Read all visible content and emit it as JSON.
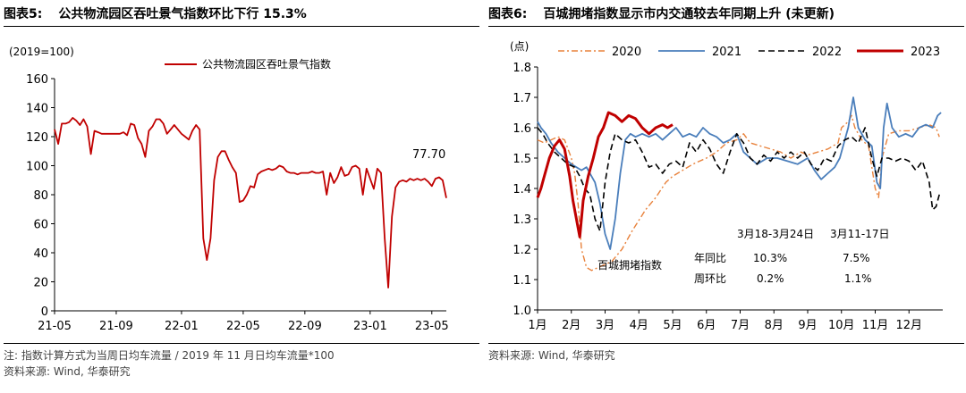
{
  "chart_data": [
    {
      "type": "line",
      "figure_label": "图表5:",
      "title": "公共物流园区吞吐景气指数环比下行 15.3%",
      "unit_note": "(2019=100)",
      "ylim": [
        0,
        160
      ],
      "y_ticks": [
        "0",
        "20",
        "40",
        "60",
        "80",
        "100",
        "120",
        "140",
        "160"
      ],
      "x_ticks": [
        "21-05",
        "21-09",
        "22-01",
        "22-05",
        "22-09",
        "23-01",
        "23-05"
      ],
      "x_tick_pos": [
        0,
        17,
        35,
        52,
        69,
        87,
        104
      ],
      "grid": false,
      "legend": "top",
      "last_value_label": "77.70",
      "color": "#c00000",
      "series": [
        {
          "name": "公共物流园区吞吐景气指数",
          "values": [
            125,
            115,
            129,
            129,
            130,
            133,
            131,
            128,
            132,
            127,
            108,
            124,
            123,
            122,
            122,
            122,
            122,
            122,
            122,
            123,
            121,
            129,
            128,
            119,
            115,
            106,
            124,
            127,
            132,
            132,
            129,
            122,
            125,
            128,
            125,
            122,
            120,
            118,
            124,
            128,
            125,
            50,
            35,
            50,
            90,
            106,
            110,
            110,
            104,
            99,
            95,
            75,
            76,
            80,
            86,
            85,
            94,
            96,
            97,
            98,
            97,
            98,
            100,
            99,
            96,
            95,
            95,
            94,
            95,
            95,
            95,
            96,
            95,
            95,
            96,
            80,
            95,
            88,
            92,
            99,
            93,
            94,
            99,
            100,
            98,
            80,
            98,
            91,
            84,
            98,
            95,
            50,
            16,
            65,
            85,
            89,
            90,
            89,
            91,
            90,
            91,
            90,
            91,
            89,
            86,
            91,
            92,
            90,
            77.7
          ]
        }
      ],
      "footnote_1": "注: 指数计算方式为当周日均车流量 / 2019 年 11 月日均车流量*100",
      "footnote_2": "资料来源: Wind, 华泰研究"
    },
    {
      "type": "line",
      "figure_label": "图表6:",
      "title": "百城拥堵指数显示市内交通较去年同期上升 (未更新)",
      "unit_note": "(点)",
      "ylim": [
        1.0,
        1.8
      ],
      "y_ticks": [
        "1.0",
        "1.1",
        "1.2",
        "1.3",
        "1.4",
        "1.5",
        "1.6",
        "1.7",
        "1.8"
      ],
      "x_ticks": [
        "1月",
        "2月",
        "3月",
        "4月",
        "5月",
        "6月",
        "7月",
        "8月",
        "9月",
        "10月",
        "11月",
        "12月"
      ],
      "legend": "top",
      "curve_annotation": "百城拥堵指数",
      "table": {
        "col_headers": [
          "3月18-3月24日",
          "3月11-17日"
        ],
        "rows": [
          {
            "label": "年同比",
            "values": [
              "10.3%",
              "7.5%"
            ]
          },
          {
            "label": "周环比",
            "values": [
              "0.2%",
              "1.1%"
            ]
          }
        ]
      },
      "series": [
        {
          "name": "2020",
          "color": "#e8823c",
          "dash": "dashdot",
          "x": [
            0,
            0.2,
            0.4,
            0.6,
            0.8,
            1.0,
            1.1,
            1.2,
            1.3,
            1.45,
            1.6,
            1.8,
            2.0,
            2.2,
            2.5,
            2.8,
            3.2,
            3.5,
            3.8,
            4.0,
            4.3,
            4.6,
            5.0,
            5.3,
            5.6,
            5.9,
            6.1,
            6.3,
            6.6,
            6.9,
            7.2,
            7.5,
            7.8,
            8.0,
            8.3,
            8.6,
            8.9,
            9.0,
            9.2,
            9.3,
            9.4,
            9.6,
            9.8,
            10.0,
            10.1,
            10.2,
            10.4,
            10.7,
            11.0,
            11.3,
            11.6,
            11.8,
            11.9
          ],
          "y": [
            1.56,
            1.55,
            1.56,
            1.57,
            1.56,
            1.5,
            1.45,
            1.35,
            1.2,
            1.14,
            1.13,
            1.14,
            1.15,
            1.16,
            1.2,
            1.26,
            1.33,
            1.37,
            1.42,
            1.44,
            1.46,
            1.48,
            1.5,
            1.52,
            1.55,
            1.56,
            1.58,
            1.55,
            1.54,
            1.53,
            1.52,
            1.5,
            1.52,
            1.51,
            1.52,
            1.53,
            1.55,
            1.6,
            1.62,
            1.64,
            1.6,
            1.56,
            1.54,
            1.4,
            1.37,
            1.5,
            1.58,
            1.59,
            1.59,
            1.6,
            1.61,
            1.6,
            1.57
          ]
        },
        {
          "name": "2021",
          "color": "#4a7ebb",
          "dash": "solid",
          "x": [
            0,
            0.1,
            0.25,
            0.4,
            0.6,
            0.8,
            1.0,
            1.15,
            1.3,
            1.45,
            1.6,
            1.7,
            1.85,
            2.0,
            2.15,
            2.3,
            2.45,
            2.6,
            2.75,
            2.9,
            3.1,
            3.3,
            3.5,
            3.7,
            3.9,
            4.1,
            4.3,
            4.5,
            4.7,
            4.9,
            5.1,
            5.3,
            5.5,
            5.7,
            5.9,
            6.1,
            6.3,
            6.5,
            6.8,
            7.1,
            7.4,
            7.7,
            8.0,
            8.2,
            8.4,
            8.6,
            8.8,
            8.95,
            9.1,
            9.2,
            9.35,
            9.5,
            9.7,
            9.9,
            10.05,
            10.15,
            10.25,
            10.35,
            10.5,
            10.7,
            10.9,
            11.1,
            11.3,
            11.5,
            11.7,
            11.85,
            11.95
          ],
          "y": [
            1.62,
            1.6,
            1.58,
            1.55,
            1.52,
            1.5,
            1.48,
            1.47,
            1.46,
            1.47,
            1.44,
            1.42,
            1.35,
            1.25,
            1.2,
            1.3,
            1.45,
            1.56,
            1.58,
            1.57,
            1.58,
            1.57,
            1.58,
            1.56,
            1.58,
            1.6,
            1.57,
            1.58,
            1.57,
            1.6,
            1.58,
            1.57,
            1.55,
            1.56,
            1.58,
            1.52,
            1.5,
            1.48,
            1.5,
            1.5,
            1.49,
            1.48,
            1.5,
            1.46,
            1.43,
            1.45,
            1.47,
            1.5,
            1.56,
            1.6,
            1.7,
            1.6,
            1.56,
            1.54,
            1.42,
            1.4,
            1.6,
            1.68,
            1.6,
            1.57,
            1.58,
            1.57,
            1.6,
            1.61,
            1.6,
            1.64,
            1.65
          ]
        },
        {
          "name": "2022",
          "color": "#000000",
          "dash": "dashed",
          "x": [
            0,
            0.15,
            0.3,
            0.5,
            0.7,
            0.9,
            1.1,
            1.25,
            1.4,
            1.55,
            1.7,
            1.85,
            2.0,
            2.15,
            2.3,
            2.5,
            2.7,
            2.9,
            3.1,
            3.3,
            3.5,
            3.7,
            3.9,
            4.1,
            4.3,
            4.5,
            4.7,
            4.9,
            5.1,
            5.3,
            5.5,
            5.7,
            5.9,
            6.1,
            6.3,
            6.5,
            6.7,
            6.9,
            7.1,
            7.3,
            7.5,
            7.7,
            7.9,
            8.1,
            8.3,
            8.5,
            8.7,
            8.9,
            9.1,
            9.3,
            9.5,
            9.7,
            9.9,
            10.05,
            10.2,
            10.4,
            10.6,
            10.8,
            11.0,
            11.2,
            11.4,
            11.6,
            11.7,
            11.8,
            11.9
          ],
          "y": [
            1.6,
            1.58,
            1.55,
            1.52,
            1.5,
            1.48,
            1.47,
            1.44,
            1.4,
            1.38,
            1.3,
            1.26,
            1.42,
            1.52,
            1.58,
            1.56,
            1.55,
            1.56,
            1.52,
            1.47,
            1.48,
            1.45,
            1.48,
            1.49,
            1.47,
            1.55,
            1.52,
            1.56,
            1.53,
            1.48,
            1.45,
            1.52,
            1.58,
            1.55,
            1.5,
            1.48,
            1.51,
            1.49,
            1.52,
            1.5,
            1.52,
            1.5,
            1.52,
            1.48,
            1.46,
            1.5,
            1.49,
            1.54,
            1.56,
            1.57,
            1.55,
            1.6,
            1.5,
            1.44,
            1.5,
            1.5,
            1.49,
            1.5,
            1.49,
            1.46,
            1.49,
            1.42,
            1.33,
            1.34,
            1.38
          ]
        },
        {
          "name": "2023",
          "color": "#c00000",
          "dash": "solid",
          "x": [
            0,
            0.1,
            0.2,
            0.35,
            0.5,
            0.65,
            0.8,
            0.95,
            1.05,
            1.15,
            1.25,
            1.35,
            1.5,
            1.65,
            1.8,
            1.95,
            2.1,
            2.3,
            2.5,
            2.7,
            2.9,
            3.1,
            3.3,
            3.5,
            3.7,
            3.85,
            4.0
          ],
          "y": [
            1.37,
            1.4,
            1.44,
            1.5,
            1.54,
            1.56,
            1.53,
            1.44,
            1.36,
            1.3,
            1.24,
            1.36,
            1.44,
            1.5,
            1.57,
            1.6,
            1.65,
            1.64,
            1.62,
            1.64,
            1.63,
            1.6,
            1.58,
            1.6,
            1.61,
            1.6,
            1.61
          ]
        }
      ],
      "footnote_1": "资料来源: Wind, 华泰研究"
    }
  ]
}
